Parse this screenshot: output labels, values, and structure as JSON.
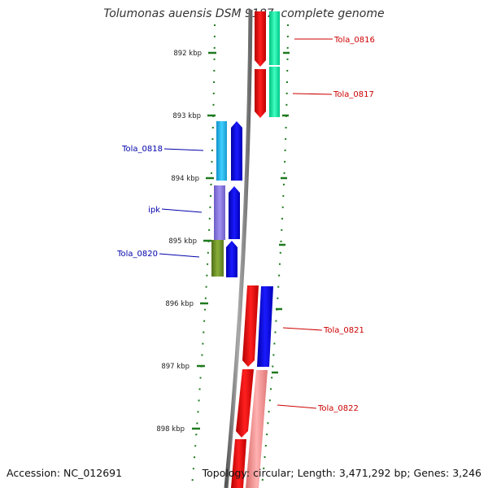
{
  "title": "Tolumonas auensis DSM 9187, complete genome",
  "accession": "Accession: NC_012691",
  "summary": "Topology: circular; Length: 3,471,292 bp; Genes: 3,246",
  "ticks": [
    "892 kbp",
    "893 kbp",
    "894 kbp",
    "895 kbp",
    "896 kbp",
    "897 kbp",
    "898 kbp"
  ],
  "colors": {
    "backbone": "#7a7a7a",
    "tick": "#1f7a1f",
    "forward_label": "#cc0000",
    "reverse_label": "#0000aa",
    "cds_forward": "#ee0000",
    "cds_reverse": "#0000ee"
  },
  "genes": [
    {
      "name": "Tola_0816",
      "strand": "forward",
      "color": "#ee0000",
      "cog_color": "#00ee99"
    },
    {
      "name": "Tola_0817",
      "strand": "forward",
      "color": "#ee0000",
      "cog_color": "#00ee99"
    },
    {
      "name": "Tola_0818",
      "strand": "reverse",
      "color": "#0000ee",
      "cog_color": "#22b8e8"
    },
    {
      "name": "ipk",
      "strand": "reverse",
      "color": "#0000ee",
      "cog_color": "#8877dd"
    },
    {
      "name": "Tola_0820",
      "strand": "reverse",
      "color": "#0000ee",
      "cog_color": "#6b8e23"
    },
    {
      "name": "Tola_0821",
      "strand": "forward",
      "color": "#ee0000",
      "cog_color": "#0000ee"
    },
    {
      "name": "Tola_0822",
      "strand": "forward",
      "color": "#ee0000",
      "cog_color": "#f09090"
    }
  ]
}
